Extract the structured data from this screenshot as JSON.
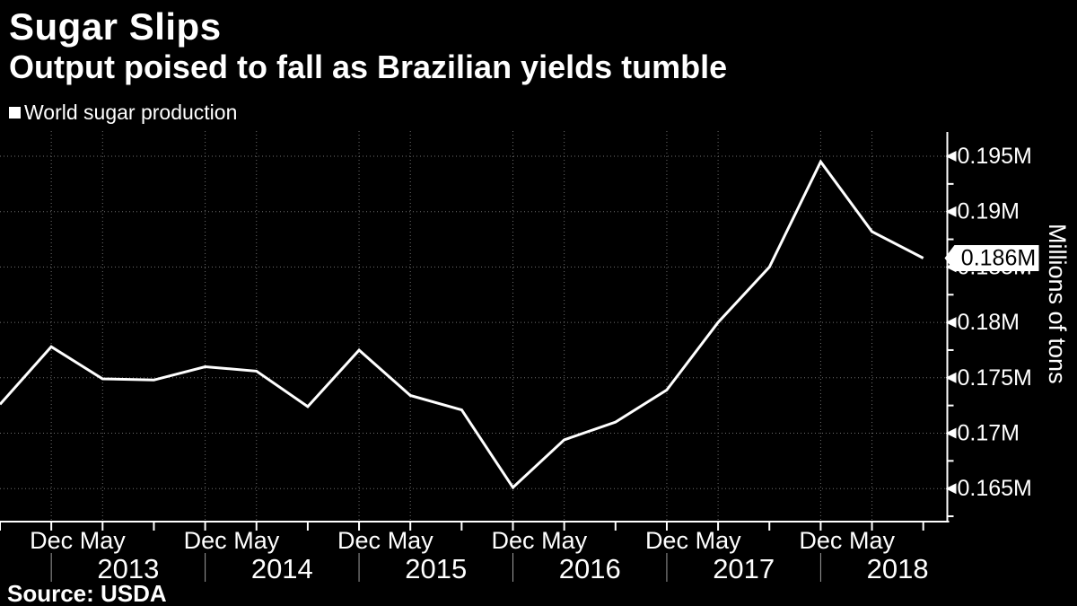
{
  "header": {
    "title": "Sugar Slips",
    "subtitle": "Output poised to fall as Brazilian yields tumble"
  },
  "legend": {
    "label": "World sugar production"
  },
  "source": {
    "text": "Source: USDA"
  },
  "y_axis": {
    "title": "Millions of tons",
    "majors": [
      {
        "value": 0.165,
        "label": "0.165M"
      },
      {
        "value": 0.17,
        "label": "0.17M"
      },
      {
        "value": 0.175,
        "label": "0.175M"
      },
      {
        "value": 0.18,
        "label": "0.18M"
      },
      {
        "value": 0.185,
        "label": "0.185M"
      },
      {
        "value": 0.19,
        "label": "0.19M"
      },
      {
        "value": 0.195,
        "label": "0.195M"
      }
    ],
    "minor_values": [
      0.1625,
      0.1675,
      0.1725,
      0.1775,
      0.1825,
      0.1875,
      0.1925
    ]
  },
  "callout": {
    "label": "0.186M",
    "value": 0.1858
  },
  "chart_data": {
    "type": "line",
    "title": "Sugar Slips",
    "subtitle": "Output poised to fall as Brazilian yields tumble",
    "ylabel": "Millions of tons",
    "ylim": [
      0.1618,
      0.1972
    ],
    "grid": "dotted",
    "legend_position": "top-left",
    "unit": "millions of tons",
    "x_labels": [
      "",
      "Dec",
      "May",
      "",
      "Dec",
      "May",
      "",
      "Dec",
      "May",
      "",
      "Dec",
      "May",
      "",
      "Dec",
      "May",
      "",
      "Dec",
      "May",
      ""
    ],
    "year_groups": [
      {
        "label": "2013",
        "divider_index": 1
      },
      {
        "label": "2014",
        "divider_index": 4
      },
      {
        "label": "2015",
        "divider_index": 7
      },
      {
        "label": "2016",
        "divider_index": 10
      },
      {
        "label": "2017",
        "divider_index": 13
      },
      {
        "label": "2018",
        "divider_index": 16
      }
    ],
    "series": [
      {
        "name": "World sugar production",
        "values": [
          0.1726,
          0.1778,
          0.1749,
          0.1748,
          0.176,
          0.1756,
          0.1724,
          0.1775,
          0.1734,
          0.1721,
          0.1651,
          0.1694,
          0.171,
          0.1739,
          0.18,
          0.185,
          0.1945,
          0.1882,
          0.1858
        ]
      }
    ],
    "last_value_label": "0.186M"
  },
  "colors": {
    "background": "#000000",
    "line": "#ffffff",
    "grid": "#6f6f6f",
    "divider": "#9e9e9e",
    "axis": "#ffffff",
    "callout_bg": "#ffffff",
    "callout_text": "#000000"
  }
}
